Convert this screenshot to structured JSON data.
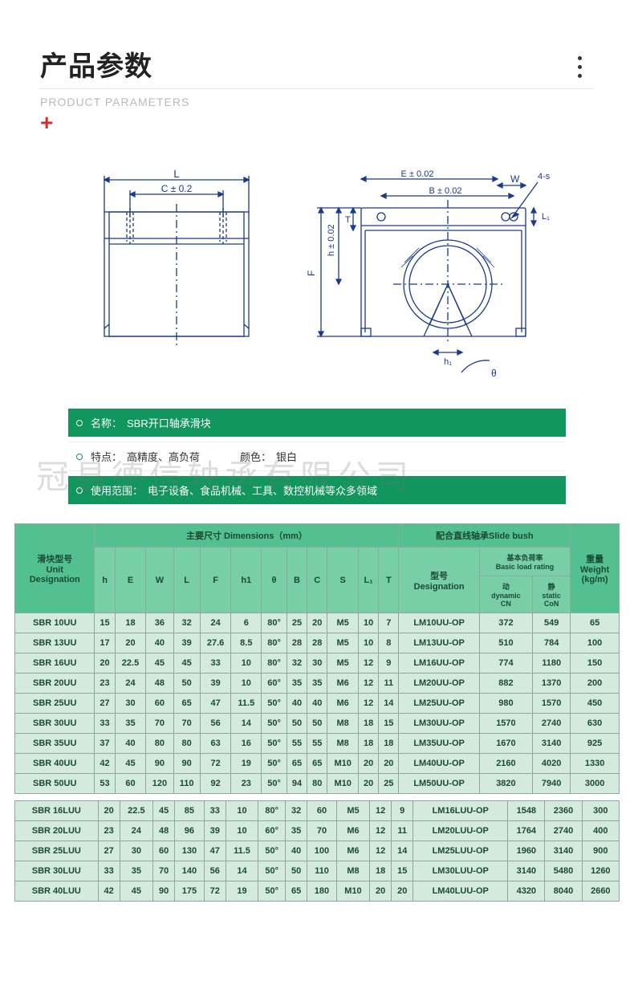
{
  "header": {
    "title_cn": "产品参数",
    "subtitle_en": "PRODUCT PARAMETERS"
  },
  "diagram": {
    "left": {
      "L": "L",
      "C": "C ± 0.2"
    },
    "right": {
      "E": "E ± 0.02",
      "W": "W",
      "B": "B ± 0.02",
      "h": "h ± 0.02",
      "F": "F",
      "T": "T",
      "L1": "L₁",
      "h1": "h₁",
      "theta": "θ",
      "s4": "4-s"
    },
    "stroke": "#1a3a8a",
    "line_w": 1.3
  },
  "info": {
    "name_label": "名称：",
    "name_val": "SBR开口轴承滑块",
    "feat_label": "特点：",
    "feat_val": "高精度、高负荷",
    "color_label": "颜色：",
    "color_val": "银白",
    "use_label": "使用范围：",
    "use_val": "电子设备、食品机械、工具、数控机械等众多领域"
  },
  "watermark": "冠县德信轴承有限公司",
  "table": {
    "group1": "滑块型号",
    "group1b": "Unit",
    "group1c": "Designation",
    "group2": "主要尺寸 Dimensions（mm）",
    "group3": "配合直线轴承Slide bush",
    "group4": "重量",
    "group4b": "Weight",
    "group4c": "(kg/m)",
    "sub3a": "型号",
    "sub3a2": "Designation",
    "sub3b": "基本负荷率",
    "sub3b2": "Basic load rating",
    "sub3c": "动",
    "sub3c2": "dynamic",
    "sub3c3": "CN",
    "sub3d": "静",
    "sub3d2": "static",
    "sub3d3": "CoN",
    "cols": [
      "h",
      "E",
      "W",
      "L",
      "F",
      "h1",
      "θ",
      "B",
      "C",
      "S",
      "L₁",
      "T"
    ],
    "rows": [
      [
        "SBR 10UU",
        "15",
        "18",
        "36",
        "32",
        "24",
        "6",
        "80°",
        "25",
        "20",
        "M5",
        "10",
        "7",
        "LM10UU-OP",
        "372",
        "549",
        "65"
      ],
      [
        "SBR 13UU",
        "17",
        "20",
        "40",
        "39",
        "27.6",
        "8.5",
        "80°",
        "28",
        "28",
        "M5",
        "10",
        "8",
        "LM13UU-OP",
        "510",
        "784",
        "100"
      ],
      [
        "SBR 16UU",
        "20",
        "22.5",
        "45",
        "45",
        "33",
        "10",
        "80°",
        "32",
        "30",
        "M5",
        "12",
        "9",
        "LM16UU-OP",
        "774",
        "1180",
        "150"
      ],
      [
        "SBR 20UU",
        "23",
        "24",
        "48",
        "50",
        "39",
        "10",
        "60°",
        "35",
        "35",
        "M6",
        "12",
        "11",
        "LM20UU-OP",
        "882",
        "1370",
        "200"
      ],
      [
        "SBR 25UU",
        "27",
        "30",
        "60",
        "65",
        "47",
        "11.5",
        "50°",
        "40",
        "40",
        "M6",
        "12",
        "14",
        "LM25UU-OP",
        "980",
        "1570",
        "450"
      ],
      [
        "SBR 30UU",
        "33",
        "35",
        "70",
        "70",
        "56",
        "14",
        "50°",
        "50",
        "50",
        "M8",
        "18",
        "15",
        "LM30UU-OP",
        "1570",
        "2740",
        "630"
      ],
      [
        "SBR 35UU",
        "37",
        "40",
        "80",
        "80",
        "63",
        "16",
        "50°",
        "55",
        "55",
        "M8",
        "18",
        "18",
        "LM35UU-OP",
        "1670",
        "3140",
        "925"
      ],
      [
        "SBR 40UU",
        "42",
        "45",
        "90",
        "90",
        "72",
        "19",
        "50°",
        "65",
        "65",
        "M10",
        "20",
        "20",
        "LM40UU-OP",
        "2160",
        "4020",
        "1330"
      ],
      [
        "SBR 50UU",
        "53",
        "60",
        "120",
        "110",
        "92",
        "23",
        "50°",
        "94",
        "80",
        "M10",
        "20",
        "25",
        "LM50UU-OP",
        "3820",
        "7940",
        "3000"
      ]
    ],
    "rows2": [
      [
        "SBR 16LUU",
        "20",
        "22.5",
        "45",
        "85",
        "33",
        "10",
        "80°",
        "32",
        "60",
        "M5",
        "12",
        "9",
        "LM16LUU-OP",
        "1548",
        "2360",
        "300"
      ],
      [
        "SBR 20LUU",
        "23",
        "24",
        "48",
        "96",
        "39",
        "10",
        "60°",
        "35",
        "70",
        "M6",
        "12",
        "11",
        "LM20LUU-OP",
        "1764",
        "2740",
        "400"
      ],
      [
        "SBR 25LUU",
        "27",
        "30",
        "60",
        "130",
        "47",
        "11.5",
        "50°",
        "40",
        "100",
        "M6",
        "12",
        "14",
        "LM25LUU-OP",
        "1960",
        "3140",
        "900"
      ],
      [
        "SBR 30LUU",
        "33",
        "35",
        "70",
        "140",
        "56",
        "14",
        "50°",
        "50",
        "110",
        "M8",
        "18",
        "15",
        "LM30LUU-OP",
        "3140",
        "5480",
        "1260"
      ],
      [
        "SBR 40LUU",
        "42",
        "45",
        "90",
        "175",
        "72",
        "19",
        "50°",
        "65",
        "180",
        "M10",
        "20",
        "20",
        "LM40LUU-OP",
        "4320",
        "8040",
        "2660"
      ]
    ]
  },
  "colors": {
    "hl": "#11965d",
    "th": "#52c18f",
    "td": "#d4eadd"
  }
}
